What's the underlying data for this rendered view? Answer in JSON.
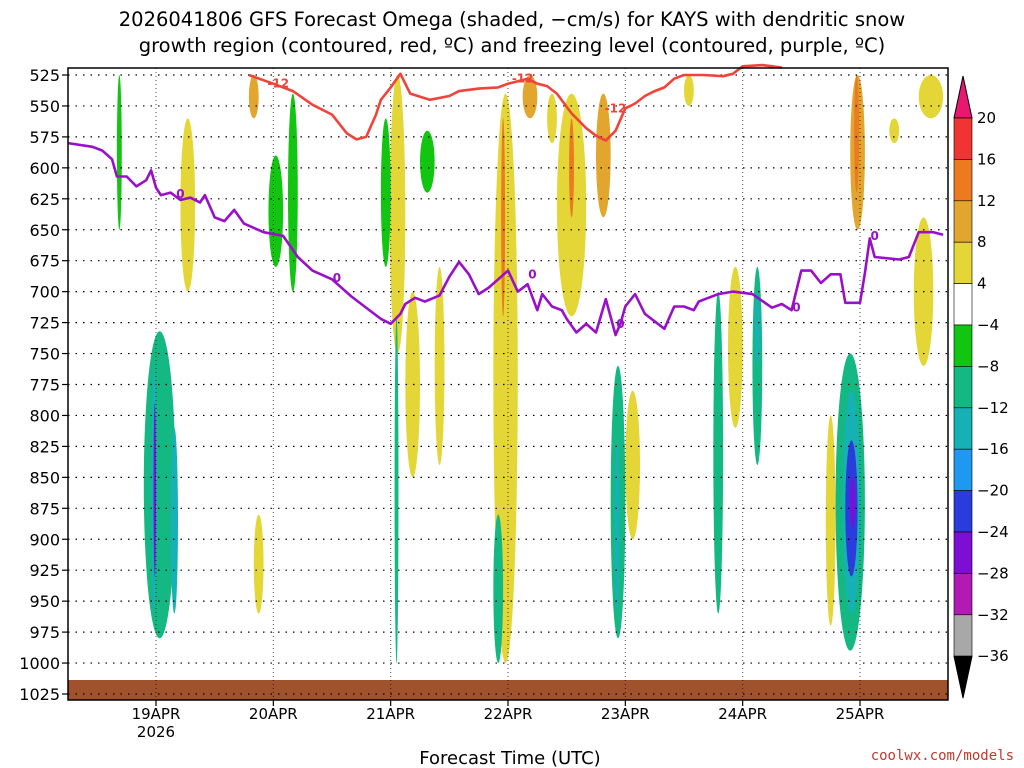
{
  "chart_data": {
    "type": "heatmap",
    "title": [
      "2026041806 GFS Forecast Omega (shaded, −cm/s) for KAYS with dendritic snow",
      "growth region (contoured, red, ºC) and freezing level (contoured, purple, ºC)"
    ],
    "xlabel": "Forecast Time (UTC)",
    "credit": "coolwx.com/models",
    "x_range_hours": [
      0,
      180
    ],
    "x_ticks": [
      {
        "label": "19APR",
        "sublabel": "2026",
        "hour": 18
      },
      {
        "label": "20APR",
        "hour": 42
      },
      {
        "label": "21APR",
        "hour": 66
      },
      {
        "label": "22APR",
        "hour": 90
      },
      {
        "label": "23APR",
        "hour": 114
      },
      {
        "label": "24APR",
        "hour": 138
      },
      {
        "label": "25APR",
        "hour": 162
      }
    ],
    "y_ticks": [
      "525",
      "550",
      "575",
      "600",
      "625",
      "650",
      "675",
      "700",
      "725",
      "750",
      "775",
      "800",
      "825",
      "850",
      "875",
      "900",
      "925",
      "950",
      "975",
      "1000",
      "1025"
    ],
    "y_range_hpa": [
      525,
      1025
    ],
    "colorbar": {
      "labels": [
        "20",
        "16",
        "12",
        "8",
        "4",
        "−4",
        "−8",
        "−12",
        "−16",
        "−20",
        "−24",
        "−28",
        "−32",
        "−36"
      ],
      "colors": [
        "#e8176f",
        "#f03434",
        "#ec7a1f",
        "#e2a52d",
        "#e4d636",
        "#ffffff",
        "#11c511",
        "#14b882",
        "#16b1b5",
        "#1e98f0",
        "#2b3bdc",
        "#7d0fd5",
        "#b21ab4",
        "#a8a8a8",
        "#000000"
      ]
    },
    "freezing_level_label": "0",
    "dgz_label": "-12",
    "freezing_level": [
      [
        0,
        580
      ],
      [
        5,
        583
      ],
      [
        7,
        586
      ],
      [
        9,
        593
      ],
      [
        10,
        607
      ],
      [
        12,
        607
      ],
      [
        14,
        615
      ],
      [
        16,
        610
      ],
      [
        17,
        602
      ],
      [
        18,
        616
      ],
      [
        19,
        622
      ],
      [
        21,
        620
      ],
      [
        23,
        626
      ],
      [
        25,
        624
      ],
      [
        27,
        628
      ],
      [
        28,
        622
      ],
      [
        30,
        640
      ],
      [
        32,
        643
      ],
      [
        34,
        634
      ],
      [
        36,
        645
      ],
      [
        40,
        652
      ],
      [
        44,
        655
      ],
      [
        47,
        672
      ],
      [
        50,
        683
      ],
      [
        54,
        690
      ],
      [
        58,
        704
      ],
      [
        62,
        716
      ],
      [
        64,
        722
      ],
      [
        66,
        726
      ],
      [
        68,
        718
      ],
      [
        69,
        710
      ],
      [
        71,
        705
      ],
      [
        73,
        708
      ],
      [
        76,
        703
      ],
      [
        78,
        688
      ],
      [
        80,
        676
      ],
      [
        82,
        686
      ],
      [
        84,
        702
      ],
      [
        86,
        697
      ],
      [
        88,
        690
      ],
      [
        90,
        683
      ],
      [
        92,
        700
      ],
      [
        94,
        694
      ],
      [
        96,
        715
      ],
      [
        97,
        702
      ],
      [
        99,
        712
      ],
      [
        101,
        715
      ],
      [
        102,
        722
      ],
      [
        104,
        733
      ],
      [
        106,
        726
      ],
      [
        108,
        733
      ],
      [
        110,
        706
      ],
      [
        112,
        735
      ],
      [
        113,
        726
      ],
      [
        114,
        712
      ],
      [
        116,
        702
      ],
      [
        118,
        718
      ],
      [
        122,
        730
      ],
      [
        124,
        712
      ],
      [
        126,
        712
      ],
      [
        128,
        715
      ],
      [
        129,
        708
      ],
      [
        131,
        705
      ],
      [
        133,
        702
      ],
      [
        136,
        700
      ],
      [
        140,
        702
      ],
      [
        144,
        713
      ],
      [
        146,
        710
      ],
      [
        148,
        715
      ],
      [
        150,
        683
      ],
      [
        152,
        683
      ],
      [
        154,
        693
      ],
      [
        156,
        686
      ],
      [
        158,
        686
      ],
      [
        159,
        709
      ],
      [
        162,
        709
      ],
      [
        163,
        685
      ],
      [
        164,
        657
      ],
      [
        165,
        672
      ],
      [
        170,
        674
      ],
      [
        172,
        672
      ],
      [
        174,
        652
      ],
      [
        177,
        652
      ],
      [
        179,
        654
      ]
    ],
    "dgz_line": [
      [
        37,
        525
      ],
      [
        42,
        532
      ],
      [
        46,
        538
      ],
      [
        50,
        549
      ],
      [
        54,
        557
      ],
      [
        57,
        572
      ],
      [
        59,
        577
      ],
      [
        61,
        575
      ],
      [
        63,
        557
      ],
      [
        64,
        545
      ],
      [
        66,
        535
      ],
      [
        68,
        524
      ],
      [
        70,
        540
      ],
      [
        74,
        545
      ],
      [
        78,
        542
      ],
      [
        80,
        538
      ],
      [
        84,
        536
      ],
      [
        88,
        535
      ],
      [
        90,
        532
      ],
      [
        92,
        530
      ],
      [
        94,
        528
      ],
      [
        96,
        532
      ],
      [
        98,
        534
      ],
      [
        100,
        540
      ],
      [
        103,
        556
      ],
      [
        106,
        568
      ],
      [
        108,
        574
      ],
      [
        110,
        578
      ],
      [
        112,
        570
      ],
      [
        114,
        552
      ],
      [
        116,
        548
      ],
      [
        118,
        542
      ],
      [
        120,
        538
      ],
      [
        122,
        535
      ],
      [
        124,
        528
      ],
      [
        126,
        525
      ],
      [
        130,
        525
      ],
      [
        134,
        526
      ],
      [
        136,
        524
      ],
      [
        138,
        518
      ],
      [
        142,
        517
      ],
      [
        146,
        519
      ]
    ],
    "omega_regions": [
      {
        "name": "jet-w1",
        "x": [
          15.5,
          22.0
        ],
        "y": [
          732,
          980
        ],
        "v": -9
      },
      {
        "name": "jet-w2",
        "x": [
          17.0,
          18.2
        ],
        "y": [
          760,
          960
        ],
        "v": -14
      },
      {
        "name": "jet-w3",
        "x": [
          17.5,
          18.0
        ],
        "y": [
          790,
          930
        ],
        "v": -26
      },
      {
        "name": "jet-w4",
        "x": [
          21.0,
          22.5
        ],
        "y": [
          810,
          960
        ],
        "v": -13
      },
      {
        "name": "jet-stripA",
        "x": [
          67.0,
          67.8
        ],
        "y": [
          525,
          720
        ],
        "v": 18
      },
      {
        "name": "jet-stripB",
        "x": [
          65.8,
          69.0
        ],
        "y": [
          525,
          750
        ],
        "v": 6
      },
      {
        "name": "jet-stripC",
        "x": [
          66.8,
          67.6
        ],
        "y": [
          720,
          1000
        ],
        "v": -10
      },
      {
        "name": "jet-stripD",
        "x": [
          69,
          72
        ],
        "y": [
          700,
          850
        ],
        "v": 6
      },
      {
        "name": "jet-stripE",
        "x": [
          75,
          77
        ],
        "y": [
          680,
          840
        ],
        "v": 6
      },
      {
        "name": "jet-22a",
        "x": [
          87,
          92
        ],
        "y": [
          540,
          1000
        ],
        "v": 6
      },
      {
        "name": "jet-22b",
        "x": [
          88.6,
          89.4
        ],
        "y": [
          560,
          720
        ],
        "v": 12
      },
      {
        "name": "jet-22c",
        "x": [
          87,
          89
        ],
        "y": [
          880,
          1000
        ],
        "v": -10
      },
      {
        "name": "jet-23a",
        "x": [
          100,
          106
        ],
        "y": [
          540,
          720
        ],
        "v": 6
      },
      {
        "name": "jet-23b",
        "x": [
          102.5,
          103.5
        ],
        "y": [
          560,
          640
        ],
        "v": 12
      },
      {
        "name": "jet-23c",
        "x": [
          111,
          114
        ],
        "y": [
          760,
          980
        ],
        "v": -9
      },
      {
        "name": "jet-23d",
        "x": [
          111.8,
          112.8
        ],
        "y": [
          820,
          960
        ],
        "v": -14
      },
      {
        "name": "jet-24a",
        "x": [
          132,
          134
        ],
        "y": [
          700,
          960
        ],
        "v": -9
      },
      {
        "name": "jet-24b",
        "x": [
          135,
          138
        ],
        "y": [
          680,
          810
        ],
        "v": 6
      },
      {
        "name": "jet-24c",
        "x": [
          140,
          142
        ],
        "y": [
          680,
          840
        ],
        "v": -9
      },
      {
        "name": "jet-24d",
        "x": [
          140.5,
          141.5
        ],
        "y": [
          700,
          760
        ],
        "v": -14
      },
      {
        "name": "jet-25a",
        "x": [
          157,
          163
        ],
        "y": [
          750,
          990
        ],
        "v": -9
      },
      {
        "name": "jet-25b",
        "x": [
          158.5,
          162
        ],
        "y": [
          780,
          960
        ],
        "v": -14
      },
      {
        "name": "jet-25c",
        "x": [
          159,
          161.5
        ],
        "y": [
          820,
          930
        ],
        "v": -22
      },
      {
        "name": "jet-25d",
        "x": [
          160,
          161
        ],
        "y": [
          850,
          890
        ],
        "v": -26
      },
      {
        "name": "jet-25e",
        "x": [
          160,
          163
        ],
        "y": [
          525,
          650
        ],
        "v": 8
      },
      {
        "name": "jet-25f",
        "x": [
          160.8,
          161.8
        ],
        "y": [
          525,
          620
        ],
        "v": 14
      },
      {
        "name": "jet-25g",
        "x": [
          155,
          157
        ],
        "y": [
          800,
          970
        ],
        "v": 6
      },
      {
        "name": "jet-25h",
        "x": [
          173,
          177
        ],
        "y": [
          640,
          760
        ],
        "v": 6
      },
      {
        "name": "jet-25i",
        "x": [
          168,
          170
        ],
        "y": [
          560,
          580
        ],
        "v": 6
      },
      {
        "name": "jet-26a",
        "x": [
          174,
          179
        ],
        "y": [
          525,
          560
        ],
        "v": 6
      },
      {
        "name": "jet-s1",
        "x": [
          10,
          11
        ],
        "y": [
          525,
          650
        ],
        "v": -7
      },
      {
        "name": "jet-s2",
        "x": [
          23,
          26
        ],
        "y": [
          560,
          700
        ],
        "v": 6
      },
      {
        "name": "jet-s3",
        "x": [
          37,
          39
        ],
        "y": [
          525,
          560
        ],
        "v": 8
      },
      {
        "name": "jet-s4",
        "x": [
          41,
          44
        ],
        "y": [
          590,
          680
        ],
        "v": -7
      },
      {
        "name": "jet-s5",
        "x": [
          45,
          47
        ],
        "y": [
          540,
          700
        ],
        "v": -7
      },
      {
        "name": "jet-s6",
        "x": [
          38,
          40
        ],
        "y": [
          880,
          960
        ],
        "v": 6
      },
      {
        "name": "jet-s7",
        "x": [
          64,
          66
        ],
        "y": [
          560,
          680
        ],
        "v": -7
      },
      {
        "name": "jet-s8",
        "x": [
          72,
          75
        ],
        "y": [
          570,
          620
        ],
        "v": -7
      },
      {
        "name": "jet-s9",
        "x": [
          93,
          96
        ],
        "y": [
          525,
          560
        ],
        "v": 8
      },
      {
        "name": "jet-s10",
        "x": [
          98,
          100
        ],
        "y": [
          540,
          580
        ],
        "v": 6
      },
      {
        "name": "jet-s11",
        "x": [
          108,
          111
        ],
        "y": [
          540,
          640
        ],
        "v": 8
      },
      {
        "name": "jet-s12",
        "x": [
          114,
          117
        ],
        "y": [
          780,
          900
        ],
        "v": 6
      },
      {
        "name": "jet-s13",
        "x": [
          126,
          128
        ],
        "y": [
          525,
          550
        ],
        "v": 6
      }
    ]
  }
}
